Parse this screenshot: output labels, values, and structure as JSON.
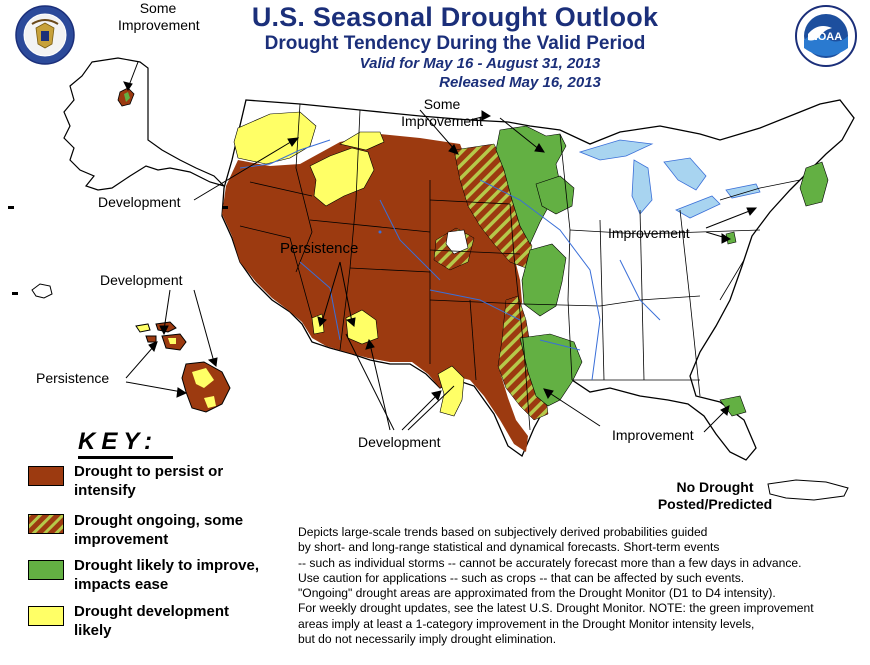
{
  "header": {
    "title": "U.S. Seasonal Drought Outlook",
    "subtitle": "Drought Tendency During the Valid Period",
    "valid": "Valid for May 16 - August 31, 2013",
    "released": "Released May 16, 2013"
  },
  "logos": {
    "left": "seal-icon",
    "right": "noaa-logo",
    "noaa_text": "NOAA"
  },
  "map_labels": {
    "alaska_some_improvement": [
      "Some",
      "Improvement"
    ],
    "west_development": "Development",
    "some_improvement_plains": [
      "Some",
      "Improvement"
    ],
    "persistence_west": "Persistence",
    "improvement_east": "Improvement",
    "hawaii_development": "Development",
    "hawaii_persistence": "Persistence",
    "development_south": "Development",
    "improvement_florida": "Improvement",
    "no_drought": [
      "No Drought",
      "Posted/Predicted"
    ]
  },
  "key": {
    "title": "KEY:",
    "items": [
      {
        "label": [
          "Drought to persist or",
          "intensify"
        ],
        "color": "#9c3a10",
        "pattern": "solid"
      },
      {
        "label": [
          "Drought ongoing, some",
          "improvement"
        ],
        "color": "#9c3a10",
        "pattern": "hatched",
        "stripe": "#b5c94a"
      },
      {
        "label": [
          "Drought likely to improve,",
          "impacts ease"
        ],
        "color": "#63b043",
        "pattern": "solid"
      },
      {
        "label": [
          "Drought development",
          "likely"
        ],
        "color": "#ffff66",
        "pattern": "solid"
      }
    ]
  },
  "description": [
    "Depicts large-scale trends based on subjectively derived probabilities guided",
    "by short- and long-range statistical and dynamical forecasts. Short-term events",
    "-- such as individual storms -- cannot be accurately forecast more than a few days in advance.",
    "Use caution for applications -- such as crops -- that can be affected by such events.",
    "\"Ongoing\" drought areas are approximated from the Drought Monitor (D1 to D4 intensity).",
    "For weekly drought updates, see the latest U.S. Drought Monitor. NOTE: the green improvement",
    "areas imply at least a 1-category improvement in the Drought Monitor intensity levels,",
    "but do not necessarily imply drought elimination."
  ],
  "colors": {
    "title": "#1b2f7a",
    "persist": "#9c3a10",
    "improve": "#63b043",
    "develop": "#ffff66",
    "water": "#a8d4f0",
    "state_line": "#000000",
    "river": "#3a6fd8"
  }
}
